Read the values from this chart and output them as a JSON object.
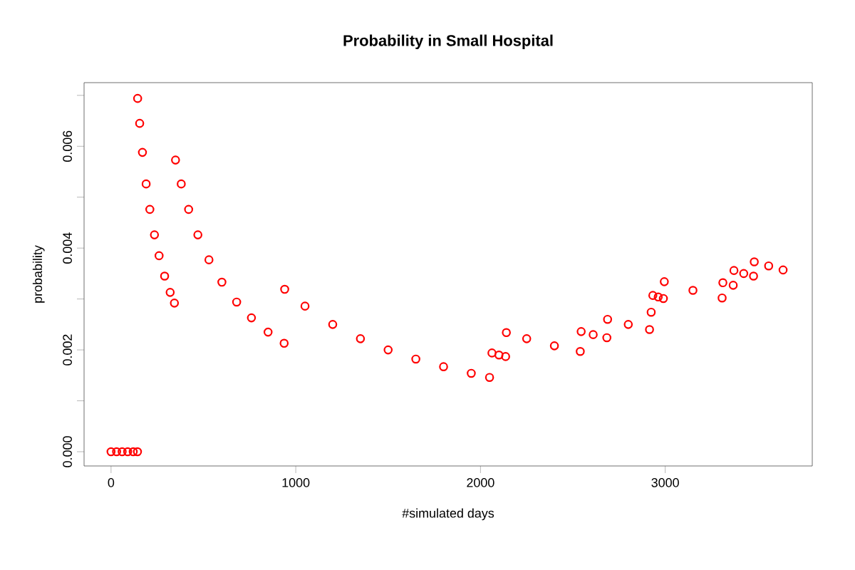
{
  "chart_data": {
    "type": "scatter",
    "title": "Probability in Small Hospital",
    "xlabel": "#simulated days",
    "ylabel": "probability",
    "xlim": [
      -146,
      3796
    ],
    "ylim": [
      -0.00028,
      0.00725
    ],
    "xticks": [
      0,
      1000,
      2000,
      3000
    ],
    "yticks": [
      {
        "value": 0,
        "label": "0.000"
      },
      {
        "value": 0.001,
        "label": null
      },
      {
        "value": 0.002,
        "label": "0.002"
      },
      {
        "value": 0.003,
        "label": null
      },
      {
        "value": 0.004,
        "label": "0.004"
      },
      {
        "value": 0.005,
        "label": null
      },
      {
        "value": 0.006,
        "label": "0.006"
      },
      {
        "value": 0.007,
        "label": null
      }
    ],
    "marker": "circle",
    "series": [
      {
        "color": "#ff0000",
        "x": [
          0,
          30,
          60,
          90,
          120,
          143,
          144,
          155,
          170,
          190,
          210,
          235,
          260,
          290,
          320,
          343,
          349,
          380,
          420,
          470,
          530,
          600,
          680,
          760,
          850,
          937,
          940,
          1050,
          1200,
          1350,
          1500,
          1650,
          1800,
          1950,
          2049,
          2062,
          2100,
          2136,
          2140,
          2250,
          2400,
          2540,
          2545,
          2610,
          2684,
          2688,
          2800,
          2915,
          2924,
          2933,
          2962,
          2990,
          2995,
          3150,
          3308,
          3312,
          3368,
          3372,
          3425,
          3478,
          3482,
          3560,
          3638
        ],
        "values": [
          0,
          0,
          0,
          0,
          0,
          0,
          0.00694,
          0.00645,
          0.00588,
          0.00526,
          0.00476,
          0.00426,
          0.00385,
          0.00345,
          0.00313,
          0.00292,
          0.00573,
          0.00526,
          0.00476,
          0.00426,
          0.00377,
          0.00333,
          0.00294,
          0.00263,
          0.00235,
          0.00213,
          0.00319,
          0.00286,
          0.0025,
          0.00222,
          0.002,
          0.00182,
          0.00167,
          0.00154,
          0.00146,
          0.00194,
          0.0019,
          0.00187,
          0.00234,
          0.00222,
          0.00208,
          0.00197,
          0.00236,
          0.0023,
          0.00224,
          0.0026,
          0.0025,
          0.0024,
          0.00274,
          0.00307,
          0.00304,
          0.00301,
          0.00334,
          0.00317,
          0.00302,
          0.00332,
          0.00327,
          0.00356,
          0.0035,
          0.00345,
          0.00373,
          0.00365,
          0.00357
        ]
      }
    ]
  }
}
